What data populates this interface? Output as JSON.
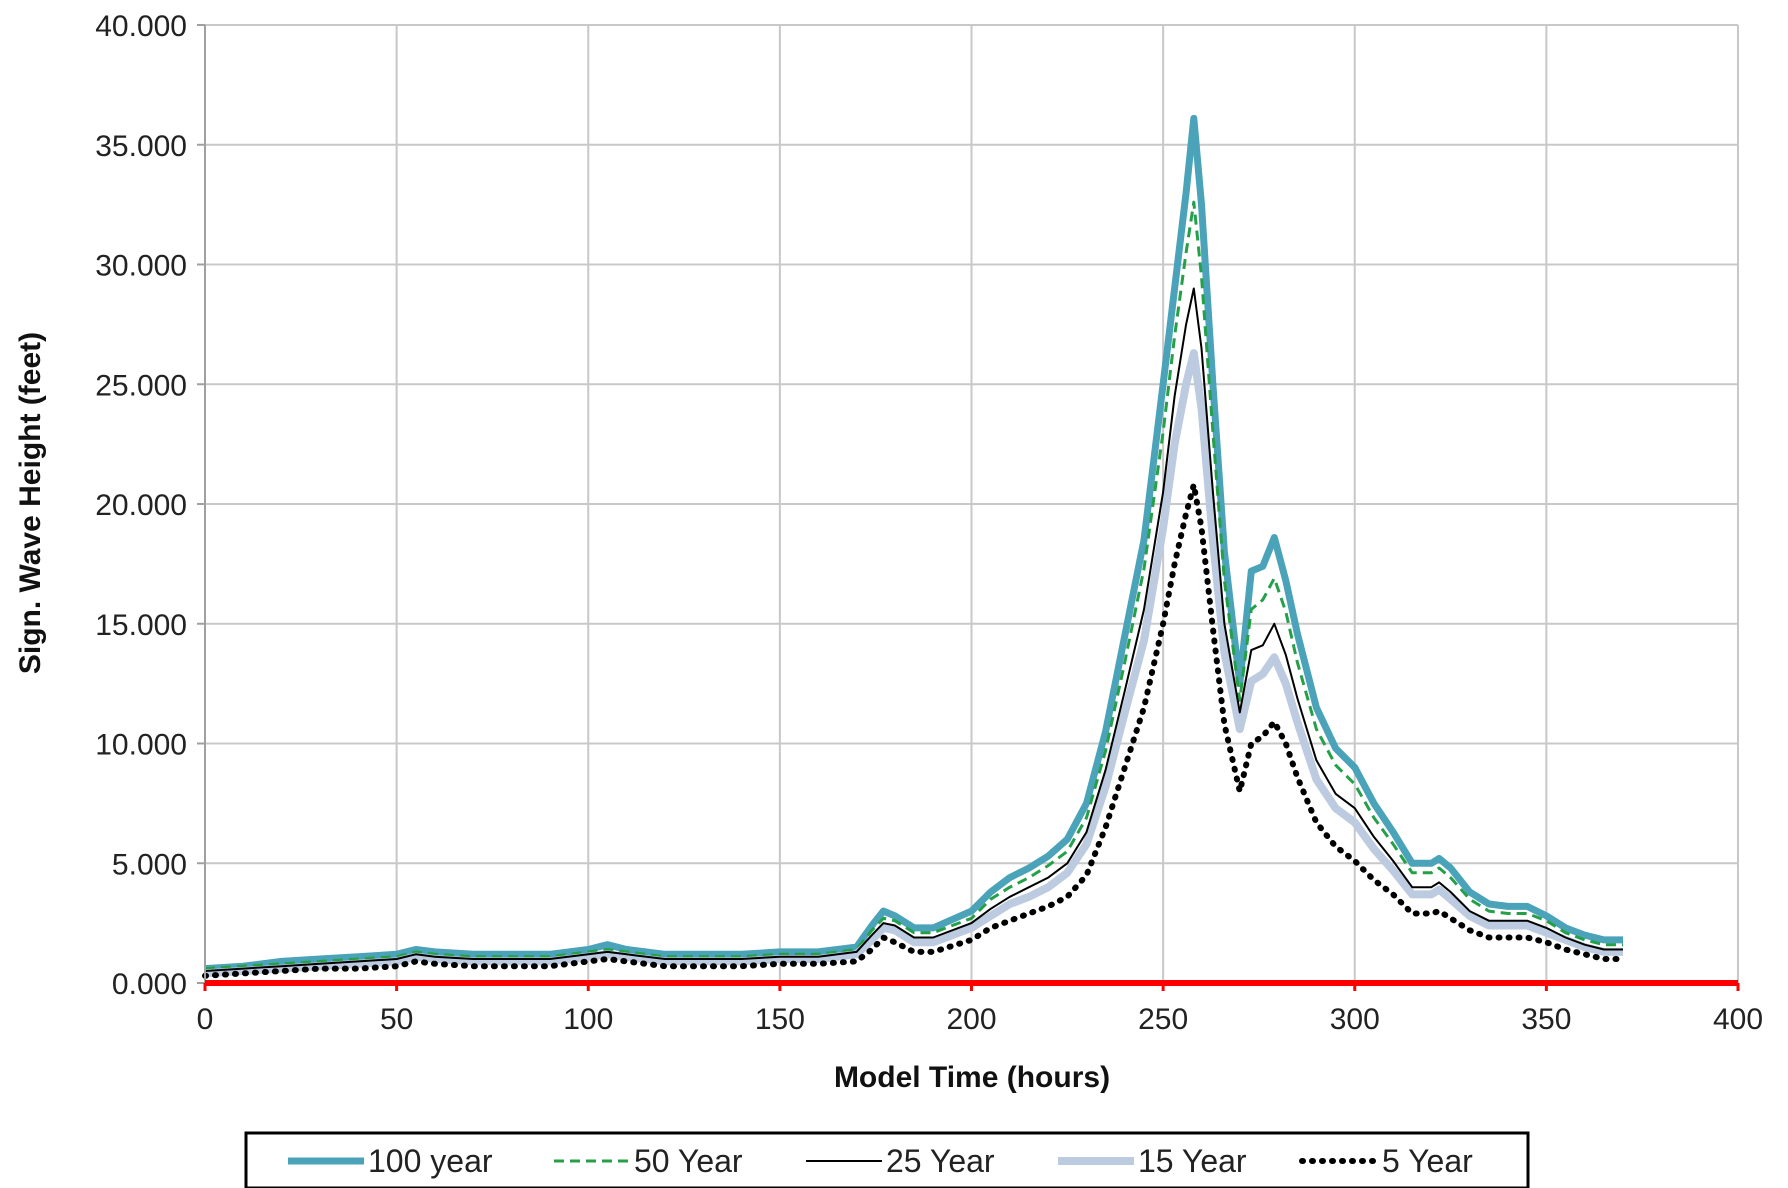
{
  "chart_data": {
    "type": "line",
    "xlabel": "Model Time (hours)",
    "ylabel": "Sign. Wave Height (feet)",
    "xlim": [
      0,
      400
    ],
    "ylim": [
      0,
      40
    ],
    "x_ticks": [
      0,
      50,
      100,
      150,
      200,
      250,
      300,
      350,
      400
    ],
    "x_tick_labels": [
      "0",
      "50",
      "100",
      "150",
      "200",
      "250",
      "300",
      "350",
      "400"
    ],
    "y_ticks": [
      0,
      5,
      10,
      15,
      20,
      25,
      30,
      35,
      40
    ],
    "y_tick_labels": [
      "0.000",
      "5.000",
      "10.000",
      "15.000",
      "20.000",
      "25.000",
      "30.000",
      "35.000",
      "40.000"
    ],
    "grid": true,
    "legend_position": "bottom",
    "colors": {
      "grid": "#c8c8c8",
      "x_axis": "#ff0000",
      "axis": "#a0a0a0"
    },
    "x": [
      0,
      10,
      20,
      30,
      40,
      50,
      55,
      60,
      70,
      80,
      90,
      100,
      105,
      110,
      120,
      130,
      140,
      150,
      160,
      170,
      174,
      177,
      180,
      185,
      190,
      200,
      205,
      210,
      215,
      220,
      225,
      230,
      235,
      240,
      245,
      250,
      253,
      256,
      258,
      260,
      263,
      266,
      270,
      273,
      276,
      279,
      282,
      285,
      290,
      295,
      300,
      305,
      310,
      315,
      320,
      322,
      325,
      330,
      335,
      340,
      345,
      350,
      355,
      360,
      365,
      370
    ],
    "series": [
      {
        "name": "100 year",
        "color": "#4aa3b8",
        "width": 7,
        "dash": "",
        "values": [
          0.6,
          0.7,
          0.9,
          1.0,
          1.1,
          1.2,
          1.4,
          1.3,
          1.2,
          1.2,
          1.2,
          1.4,
          1.6,
          1.4,
          1.2,
          1.2,
          1.2,
          1.3,
          1.3,
          1.5,
          2.4,
          3.0,
          2.8,
          2.3,
          2.3,
          3.0,
          3.8,
          4.4,
          4.8,
          5.3,
          6.0,
          7.5,
          10.5,
          14.5,
          18.5,
          25.0,
          29.0,
          33.0,
          36.1,
          32.5,
          25.0,
          18.0,
          12.5,
          17.2,
          17.4,
          18.6,
          16.8,
          14.6,
          11.5,
          9.8,
          9.0,
          7.5,
          6.3,
          5.0,
          5.0,
          5.2,
          4.8,
          3.8,
          3.3,
          3.2,
          3.2,
          2.8,
          2.3,
          2.0,
          1.8,
          1.8
        ]
      },
      {
        "name": "50 Year",
        "color": "#25a048",
        "width": 3,
        "dash": "10,6",
        "values": [
          0.6,
          0.7,
          0.8,
          0.9,
          1.0,
          1.1,
          1.3,
          1.2,
          1.1,
          1.1,
          1.1,
          1.3,
          1.4,
          1.3,
          1.1,
          1.1,
          1.1,
          1.2,
          1.2,
          1.4,
          2.2,
          2.7,
          2.6,
          2.1,
          2.1,
          2.7,
          3.5,
          4.0,
          4.4,
          4.9,
          5.5,
          6.9,
          9.7,
          13.4,
          17.3,
          23.0,
          27.0,
          30.5,
          32.6,
          29.5,
          23.0,
          16.8,
          11.8,
          15.6,
          16.0,
          16.9,
          15.5,
          13.4,
          10.6,
          9.1,
          8.3,
          6.9,
          5.8,
          4.6,
          4.6,
          4.8,
          4.4,
          3.5,
          3.0,
          2.9,
          2.9,
          2.6,
          2.1,
          1.8,
          1.6,
          1.6
        ]
      },
      {
        "name": "25 Year",
        "color": "#000000",
        "width": 2,
        "dash": "",
        "values": [
          0.5,
          0.6,
          0.7,
          0.8,
          0.9,
          1.0,
          1.2,
          1.1,
          1.0,
          1.0,
          1.0,
          1.2,
          1.3,
          1.2,
          1.0,
          1.0,
          1.0,
          1.1,
          1.1,
          1.3,
          2.0,
          2.5,
          2.4,
          1.9,
          1.9,
          2.5,
          3.1,
          3.6,
          4.0,
          4.4,
          5.0,
          6.3,
          8.9,
          12.2,
          15.6,
          20.5,
          24.5,
          27.5,
          29.0,
          26.5,
          20.5,
          15.0,
          11.3,
          13.9,
          14.1,
          15.0,
          13.7,
          11.9,
          9.3,
          7.9,
          7.3,
          6.1,
          5.1,
          4.0,
          4.0,
          4.2,
          3.8,
          3.0,
          2.6,
          2.6,
          2.6,
          2.3,
          1.9,
          1.6,
          1.4,
          1.4
        ]
      },
      {
        "name": "15 Year",
        "color": "#bccbe0",
        "width": 8,
        "dash": "",
        "values": [
          0.4,
          0.5,
          0.6,
          0.7,
          0.8,
          0.9,
          1.1,
          1.0,
          0.9,
          0.9,
          0.9,
          1.1,
          1.2,
          1.1,
          0.9,
          0.9,
          0.9,
          1.0,
          1.0,
          1.2,
          1.8,
          2.3,
          2.2,
          1.7,
          1.7,
          2.3,
          2.8,
          3.3,
          3.6,
          4.0,
          4.6,
          5.8,
          8.2,
          11.3,
          14.3,
          19.0,
          22.5,
          25.0,
          26.3,
          24.0,
          18.5,
          13.8,
          10.6,
          12.6,
          12.9,
          13.6,
          12.5,
          10.9,
          8.5,
          7.3,
          6.7,
          5.6,
          4.7,
          3.7,
          3.7,
          3.9,
          3.5,
          2.8,
          2.4,
          2.4,
          2.4,
          2.1,
          1.8,
          1.5,
          1.3,
          1.3
        ]
      },
      {
        "name": "5 Year",
        "color": "#000000",
        "width": 6,
        "dash": "1,9",
        "values": [
          0.3,
          0.4,
          0.5,
          0.6,
          0.6,
          0.7,
          0.9,
          0.8,
          0.7,
          0.7,
          0.7,
          0.9,
          1.0,
          0.9,
          0.7,
          0.7,
          0.7,
          0.8,
          0.8,
          0.9,
          1.4,
          1.9,
          1.7,
          1.3,
          1.3,
          1.8,
          2.3,
          2.6,
          2.9,
          3.2,
          3.6,
          4.5,
          6.5,
          9.0,
          11.5,
          15.0,
          17.5,
          19.6,
          20.8,
          19.0,
          14.8,
          10.8,
          8.0,
          10.0,
          10.3,
          10.9,
          10.0,
          8.6,
          6.7,
          5.7,
          5.1,
          4.3,
          3.7,
          2.9,
          2.9,
          3.0,
          2.7,
          2.2,
          1.9,
          1.9,
          1.9,
          1.7,
          1.4,
          1.2,
          1.0,
          1.0
        ]
      }
    ]
  }
}
